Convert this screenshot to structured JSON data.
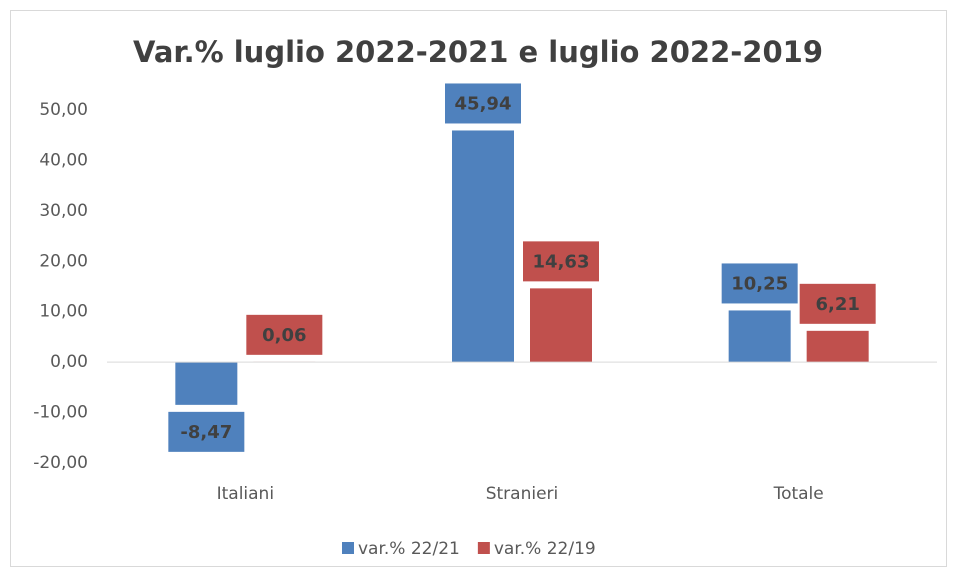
{
  "chart_data": {
    "type": "bar",
    "title": "Var.% luglio 2022-2021 e luglio 2022-2019",
    "categories": [
      "Italiani",
      "Stranieri",
      "Totale"
    ],
    "series": [
      {
        "name": "var.% 22/21",
        "color": "#4f81bd",
        "values": [
          -8.47,
          45.94,
          10.25
        ],
        "value_labels": [
          "-8,47",
          "45,94",
          "10,25"
        ]
      },
      {
        "name": "var.% 22/19",
        "color": "#c0504d",
        "values": [
          0.06,
          14.63,
          6.21
        ],
        "value_labels": [
          "0,06",
          "14,63",
          "6,21"
        ]
      }
    ],
    "ylim": [
      -20,
      50
    ],
    "yticks": [
      {
        "value": -20,
        "label": "-20,00"
      },
      {
        "value": -10,
        "label": "-10,00"
      },
      {
        "value": 0,
        "label": "0,00"
      },
      {
        "value": 10,
        "label": "10,00"
      },
      {
        "value": 20,
        "label": "20,00"
      },
      {
        "value": 30,
        "label": "30,00"
      },
      {
        "value": 40,
        "label": "40,00"
      },
      {
        "value": 50,
        "label": "50,00"
      }
    ],
    "grid": false,
    "legend": "bottom"
  }
}
